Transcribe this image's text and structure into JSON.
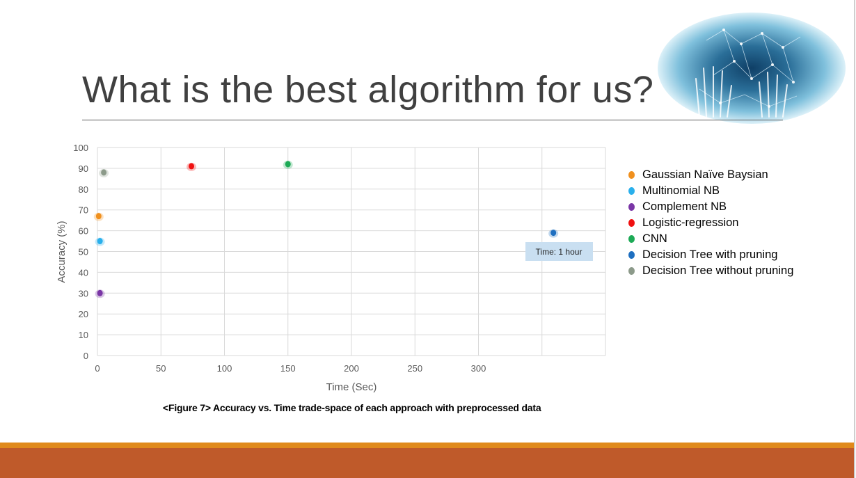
{
  "slide": {
    "title": "What is the best algorithm for us?",
    "caption": "<Figure 7> Accuracy vs. Time trade-space of each approach with preprocessed data"
  },
  "colors": {
    "title_text": "#404040",
    "footer_orange": "#e08a1c",
    "footer_rust": "#bf5a2a",
    "annotation_bg": "#c9dff1"
  },
  "decor": {
    "hero": "hands-network-image"
  },
  "chart_data": {
    "type": "scatter",
    "xlabel": "Time (Sec)",
    "ylabel": "Accuracy (%)",
    "xlim": [
      0,
      400
    ],
    "ylim": [
      0,
      100
    ],
    "xticks": [
      0,
      50,
      100,
      150,
      200,
      250,
      300
    ],
    "yticks": [
      0,
      10,
      20,
      30,
      40,
      50,
      60,
      70,
      80,
      90,
      100
    ],
    "grid": true,
    "legend_position": "right",
    "series": [
      {
        "name": "Gaussian Naïve Baysian",
        "color": "#f0901e",
        "x": [
          1
        ],
        "y": [
          67
        ]
      },
      {
        "name": "Multinomial NB",
        "color": "#2ab0ec",
        "x": [
          2
        ],
        "y": [
          55
        ]
      },
      {
        "name": "Complement NB",
        "color": "#7a36a6",
        "x": [
          2
        ],
        "y": [
          30
        ]
      },
      {
        "name": "Logistic-regression",
        "color": "#f01010",
        "x": [
          74
        ],
        "y": [
          91
        ]
      },
      {
        "name": "CNN",
        "color": "#1daa56",
        "x": [
          150
        ],
        "y": [
          92
        ]
      },
      {
        "name": "Decision Tree with pruning",
        "color": "#1e6fc0",
        "x": [
          359
        ],
        "y": [
          59
        ]
      },
      {
        "name": "Decision Tree without pruning",
        "color": "#8c9a8a",
        "x": [
          5
        ],
        "y": [
          88
        ]
      }
    ],
    "annotations": [
      {
        "text": "Time: 1 hour"
      }
    ]
  }
}
